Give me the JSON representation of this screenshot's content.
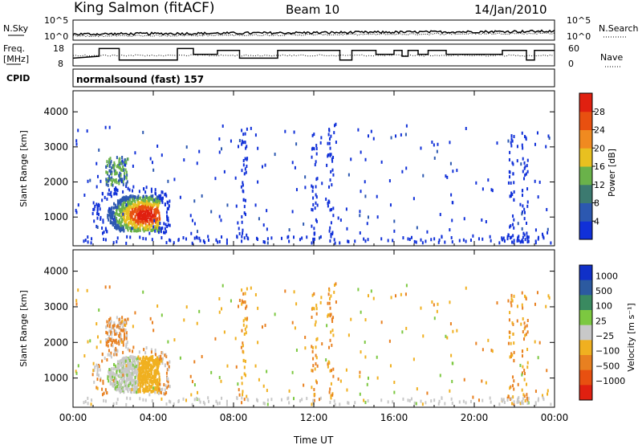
{
  "header": {
    "title": "King Salmon (fitACF)",
    "beam": "Beam 10",
    "date": "14/Jan/2010",
    "cpid_text": "normalsound (fast) 157"
  },
  "chart_data": [
    {
      "type": "line",
      "name": "noise-panel",
      "left_label": "N.Sky",
      "right_label": "N.Search",
      "left_ticks": [
        "10^5",
        "10^0"
      ],
      "right_ticks": [
        "10^5",
        "10^0"
      ]
    },
    {
      "type": "line",
      "name": "freq-nave-panel",
      "left_label_1": "Freq.",
      "left_label_2": "[MHz]",
      "left_ticks": [
        "18",
        "8"
      ],
      "right_label": "Nave",
      "right_ticks": [
        "60",
        "0"
      ],
      "cpid_label": "CPID",
      "freq_steps": [
        [
          0.0,
          12
        ],
        [
          1.3,
          13
        ],
        [
          1.3,
          17
        ],
        [
          2.3,
          17
        ],
        [
          2.3,
          11
        ],
        [
          5.2,
          11
        ],
        [
          5.2,
          17
        ],
        [
          6.0,
          17
        ],
        [
          6.0,
          14
        ],
        [
          7.2,
          14
        ],
        [
          7.2,
          16
        ],
        [
          8.3,
          16
        ],
        [
          8.3,
          12
        ],
        [
          10.2,
          12
        ],
        [
          10.2,
          16
        ],
        [
          13.3,
          16
        ],
        [
          13.3,
          11
        ],
        [
          13.9,
          11
        ],
        [
          13.9,
          16
        ],
        [
          15.1,
          16
        ],
        [
          15.1,
          14
        ],
        [
          16.0,
          14
        ],
        [
          16.0,
          16
        ],
        [
          16.4,
          16
        ],
        [
          16.4,
          13
        ],
        [
          16.7,
          13
        ],
        [
          16.7,
          16
        ],
        [
          17.2,
          16
        ],
        [
          17.2,
          14
        ],
        [
          17.7,
          14
        ],
        [
          17.7,
          16
        ],
        [
          18.6,
          16
        ],
        [
          18.6,
          14
        ],
        [
          21.4,
          14
        ],
        [
          21.4,
          16
        ],
        [
          22.6,
          16
        ],
        [
          22.6,
          11
        ],
        [
          23.0,
          11
        ],
        [
          23.0,
          16
        ],
        [
          24.0,
          16
        ]
      ]
    },
    {
      "type": "heatmap",
      "name": "power",
      "ylabel": "Slant Range [km]",
      "yticks": [
        1000,
        2000,
        3000,
        4000
      ],
      "colorbar_label": "Power [dB]",
      "colorbar_ticks": [
        "4",
        "8",
        "12",
        "16",
        "20",
        "24",
        "28"
      ],
      "colors": [
        "#1030d8",
        "#2c58b0",
        "#3c7a70",
        "#6ab24a",
        "#e8c020",
        "#f08a20",
        "#e85010",
        "#e02010"
      ]
    },
    {
      "type": "heatmap",
      "name": "velocity",
      "ylabel": "Slant Range [km]",
      "yticks": [
        1000,
        2000,
        3000,
        4000
      ],
      "colorbar_label": "Velocity [m s⁻¹]",
      "colorbar_ticks": [
        "1000",
        "500",
        "100",
        "25",
        "−25",
        "−100",
        "−500",
        "−1000"
      ],
      "colors": [
        "#1030c8",
        "#2c5aa0",
        "#3a8a60",
        "#7cc840",
        "#c8c8c8",
        "#f0b020",
        "#e88020",
        "#e85010",
        "#e02010"
      ]
    }
  ],
  "axes": {
    "xlabel": "Time UT",
    "xticks": [
      "00:00",
      "04:00",
      "08:00",
      "12:00",
      "16:00",
      "20:00",
      "00:00"
    ],
    "x_range_hours": [
      0,
      24
    ],
    "y_range_km": [
      180,
      4600
    ]
  }
}
